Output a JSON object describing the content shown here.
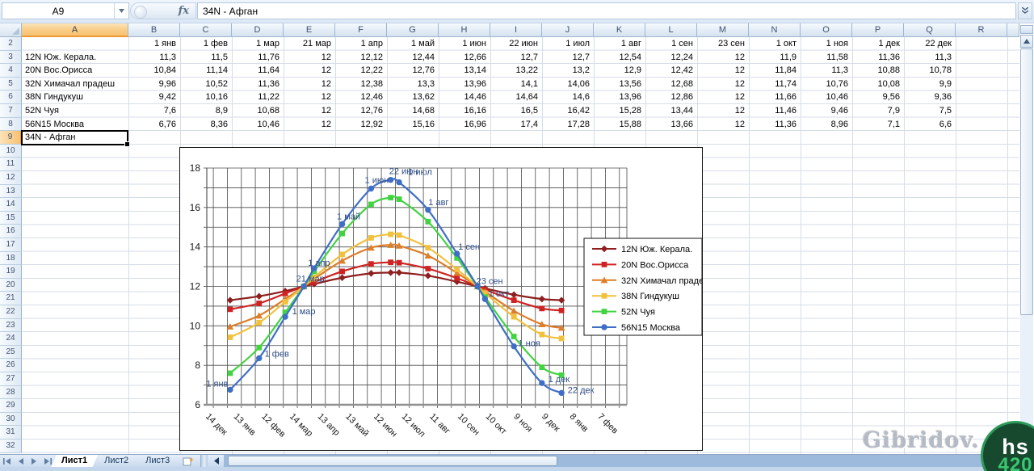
{
  "formula_bar": {
    "name_box": "A9",
    "fx_label": "fx",
    "value": "34N - Афган"
  },
  "grid": {
    "col_letters": [
      "A",
      "B",
      "C",
      "D",
      "E",
      "F",
      "G",
      "H",
      "I",
      "J",
      "K",
      "L",
      "M",
      "N",
      "O",
      "P",
      "Q",
      "R"
    ],
    "first_row": 2,
    "last_row": 32,
    "selection": {
      "ref": "A9",
      "row": 9,
      "col": "A",
      "text": "34N - Афган"
    }
  },
  "chart_data": {
    "type": "line",
    "title": "",
    "xlabel": "",
    "ylabel": "",
    "ylim": [
      6,
      18
    ],
    "y_gridline_step": 1,
    "y_label_step": 2,
    "grid": true,
    "legend_position": "right-inside",
    "categories": [
      "1 янв",
      "1 фев",
      "1 мар",
      "21 мар",
      "1 апр",
      "1 май",
      "1 июн",
      "22 июн",
      "1 июл",
      "1 авг",
      "1 сен",
      "23 сен",
      "1 окт",
      "1 ноя",
      "1 дек",
      "22 дек"
    ],
    "point_days": [
      18,
      49,
      77,
      97,
      108,
      138,
      169,
      190,
      199,
      230,
      261,
      283,
      291,
      322,
      352,
      373
    ],
    "x_tick_labels": [
      "14 дек",
      "13 янв",
      "12 фев",
      "14 мар",
      "13 апр",
      "13 май",
      "12 июн",
      "12 июл",
      "11 авг",
      "10 сен",
      "10 окт",
      "9 ноя",
      "9 дек",
      "8 янв",
      "7 фев"
    ],
    "x_tick_days": [
      0,
      30,
      60,
      90,
      120,
      150,
      180,
      210,
      240,
      270,
      300,
      330,
      360,
      390,
      420
    ],
    "x_minor_gridline_step_days": 15,
    "series": [
      {
        "name": "12N Юж. Керала.",
        "color": "#8e1f1f",
        "marker": "diamond",
        "values": [
          11.3,
          11.5,
          11.76,
          12,
          12.12,
          12.44,
          12.66,
          12.7,
          12.7,
          12.54,
          12.24,
          12,
          11.9,
          11.58,
          11.36,
          11.3
        ]
      },
      {
        "name": "20N Вос.Орисса",
        "color": "#cf2323",
        "marker": "square",
        "values": [
          10.84,
          11.14,
          11.64,
          12,
          12.22,
          12.76,
          13.14,
          13.22,
          13.2,
          12.9,
          12.42,
          12,
          11.84,
          11.3,
          10.88,
          10.78
        ]
      },
      {
        "name": "32N Химачал прадеш",
        "color": "#dd7e2a",
        "marker": "triangle",
        "values": [
          9.96,
          10.52,
          11.36,
          12,
          12.38,
          13.3,
          13.96,
          14.1,
          14.06,
          13.56,
          12.68,
          12,
          11.74,
          10.76,
          10.08,
          9.9
        ]
      },
      {
        "name": "38N Гиндукуш",
        "color": "#f1c13d",
        "marker": "square",
        "values": [
          9.42,
          10.16,
          11.22,
          12,
          12.46,
          13.62,
          14.46,
          14.64,
          14.6,
          13.96,
          12.86,
          12,
          11.66,
          10.46,
          9.56,
          9.36
        ]
      },
      {
        "name": "52N Чуя",
        "color": "#41d341",
        "marker": "square",
        "values": [
          7.6,
          8.9,
          10.68,
          12,
          12.76,
          14.68,
          16.16,
          16.5,
          16.42,
          15.28,
          13.44,
          12,
          11.46,
          9.46,
          7.9,
          7.5
        ]
      },
      {
        "name": "56N15 Москва",
        "color": "#3f6ec6",
        "marker": "circle",
        "values": [
          6.76,
          8.36,
          10.46,
          12,
          12.92,
          15.16,
          16.96,
          17.4,
          17.28,
          15.88,
          13.66,
          12,
          11.36,
          8.96,
          7.1,
          6.6
        ]
      }
    ],
    "point_labels_series": "56N15 Москва",
    "point_label_color": "#2d4d86",
    "label_dx": [
      -16,
      22,
      23,
      8,
      6,
      8,
      7,
      16,
      26,
      13,
      15,
      15,
      17,
      19,
      21,
      24
    ],
    "label_dy": [
      -4,
      -2,
      -3,
      -6,
      -3,
      -6,
      -7,
      -7,
      -9,
      -6,
      -5,
      -3,
      -3,
      0,
      -1,
      0
    ]
  },
  "sheet_tabs": {
    "items": [
      "Лист1",
      "Лист2",
      "Лист3"
    ],
    "active_index": 0
  },
  "watermark": {
    "text": "Gibridov.",
    "badge_line1": "hs",
    "badge_line2": "420"
  }
}
